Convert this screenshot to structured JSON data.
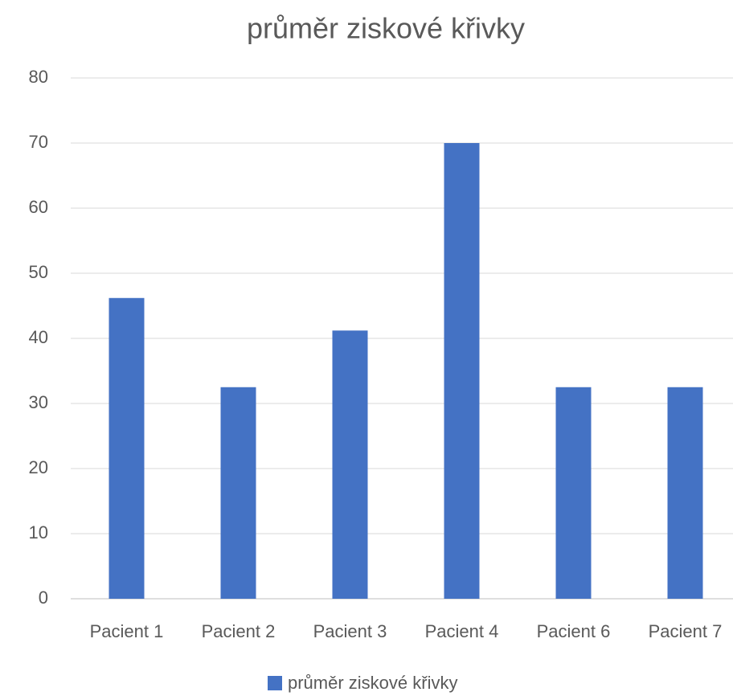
{
  "chart_data": {
    "type": "bar",
    "title": "průměr ziskové křivky",
    "categories": [
      "Pacient 1",
      "Pacient 2",
      "Pacient 3",
      "Pacient 4",
      "Pacient 6",
      "Pacient 7"
    ],
    "series": [
      {
        "name": "průměr ziskové křivky",
        "color": "#4472c4",
        "values": [
          46.2,
          32.5,
          41.2,
          70,
          32.5,
          32.5
        ]
      }
    ],
    "ylim": [
      0,
      80
    ],
    "yticks": [
      0,
      10,
      20,
      30,
      40,
      50,
      60,
      70,
      80
    ],
    "grid": true,
    "legend": "bottom"
  }
}
